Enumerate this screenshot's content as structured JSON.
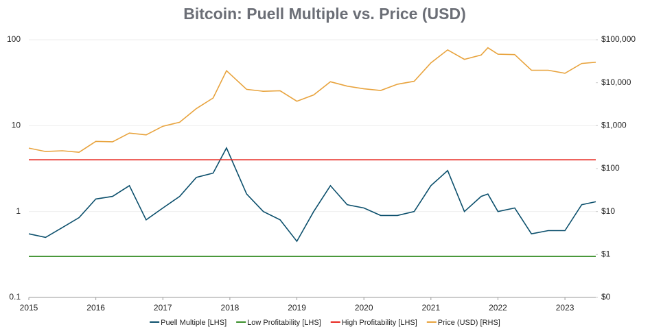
{
  "chart_data": {
    "type": "line",
    "title": "Bitcoin: Puell Multiple vs. Price (USD)",
    "x": [
      2015.0,
      2015.25,
      2015.5,
      2015.75,
      2016.0,
      2016.25,
      2016.5,
      2016.75,
      2017.0,
      2017.25,
      2017.5,
      2017.75,
      2017.95,
      2018.25,
      2018.5,
      2018.75,
      2019.0,
      2019.25,
      2019.5,
      2019.75,
      2020.0,
      2020.25,
      2020.5,
      2020.75,
      2021.0,
      2021.25,
      2021.5,
      2021.75,
      2021.85,
      2022.0,
      2022.25,
      2022.5,
      2022.75,
      2023.0,
      2023.25,
      2023.46
    ],
    "series": [
      {
        "name": "Puell Multiple [LHS]",
        "color": "#0b4f6c",
        "values": [
          0.55,
          0.5,
          0.65,
          0.85,
          1.4,
          1.5,
          2.0,
          0.8,
          1.1,
          1.5,
          2.5,
          2.8,
          5.5,
          1.6,
          1.0,
          0.8,
          0.45,
          1.0,
          2.0,
          1.2,
          1.1,
          0.9,
          0.9,
          1.0,
          2.0,
          3.0,
          1.0,
          1.5,
          1.6,
          1.0,
          1.1,
          0.55,
          0.6,
          0.6,
          1.2,
          1.3
        ]
      },
      {
        "name": "Low Profitability [LHS]",
        "color": "#3a8f2a",
        "values": [
          0.3,
          0.3,
          0.3,
          0.3,
          0.3,
          0.3,
          0.3,
          0.3,
          0.3,
          0.3,
          0.3,
          0.3,
          0.3,
          0.3,
          0.3,
          0.3,
          0.3,
          0.3,
          0.3,
          0.3,
          0.3,
          0.3,
          0.3,
          0.3,
          0.3,
          0.3,
          0.3,
          0.3,
          0.3,
          0.3,
          0.3,
          0.3,
          0.3,
          0.3,
          0.3,
          0.3
        ]
      },
      {
        "name": "High Profitability [LHS]",
        "color": "#e8271f",
        "values": [
          4,
          4,
          4,
          4,
          4,
          4,
          4,
          4,
          4,
          4,
          4,
          4,
          4,
          4,
          4,
          4,
          4,
          4,
          4,
          4,
          4,
          4,
          4,
          4,
          4,
          4,
          4,
          4,
          4,
          4,
          4,
          4,
          4,
          4,
          4,
          4
        ]
      },
      {
        "name": "Price (USD) [RHS]",
        "color": "#e8a33d",
        "axis": "y2",
        "values": [
          300,
          250,
          260,
          240,
          430,
          420,
          670,
          610,
          970,
          1200,
          2500,
          4400,
          19000,
          7000,
          6300,
          6500,
          3700,
          5200,
          10500,
          8300,
          7200,
          6600,
          9200,
          10800,
          29000,
          58000,
          35000,
          44000,
          65000,
          46000,
          45000,
          19500,
          19500,
          16600,
          28000,
          30000
        ]
      }
    ],
    "xlim": [
      2015,
      2023.46
    ],
    "xticks": [
      2015,
      2016,
      2017,
      2018,
      2019,
      2020,
      2021,
      2022,
      2023
    ],
    "ylim": [
      0.1,
      100
    ],
    "yticks": [
      0.1,
      1,
      10,
      100
    ],
    "y2lim": [
      0.1,
      100000
    ],
    "y2ticks": [
      {
        "value": 0.1,
        "label": "$0"
      },
      {
        "value": 1,
        "label": "$1"
      },
      {
        "value": 10,
        "label": "$10"
      },
      {
        "value": 100,
        "label": "$100"
      },
      {
        "value": 1000,
        "label": "$1,000"
      },
      {
        "value": 10000,
        "label": "$10,000"
      },
      {
        "value": 100000,
        "label": "$100,000"
      }
    ],
    "log_scale": true,
    "grid": true,
    "legend": "bottom"
  }
}
